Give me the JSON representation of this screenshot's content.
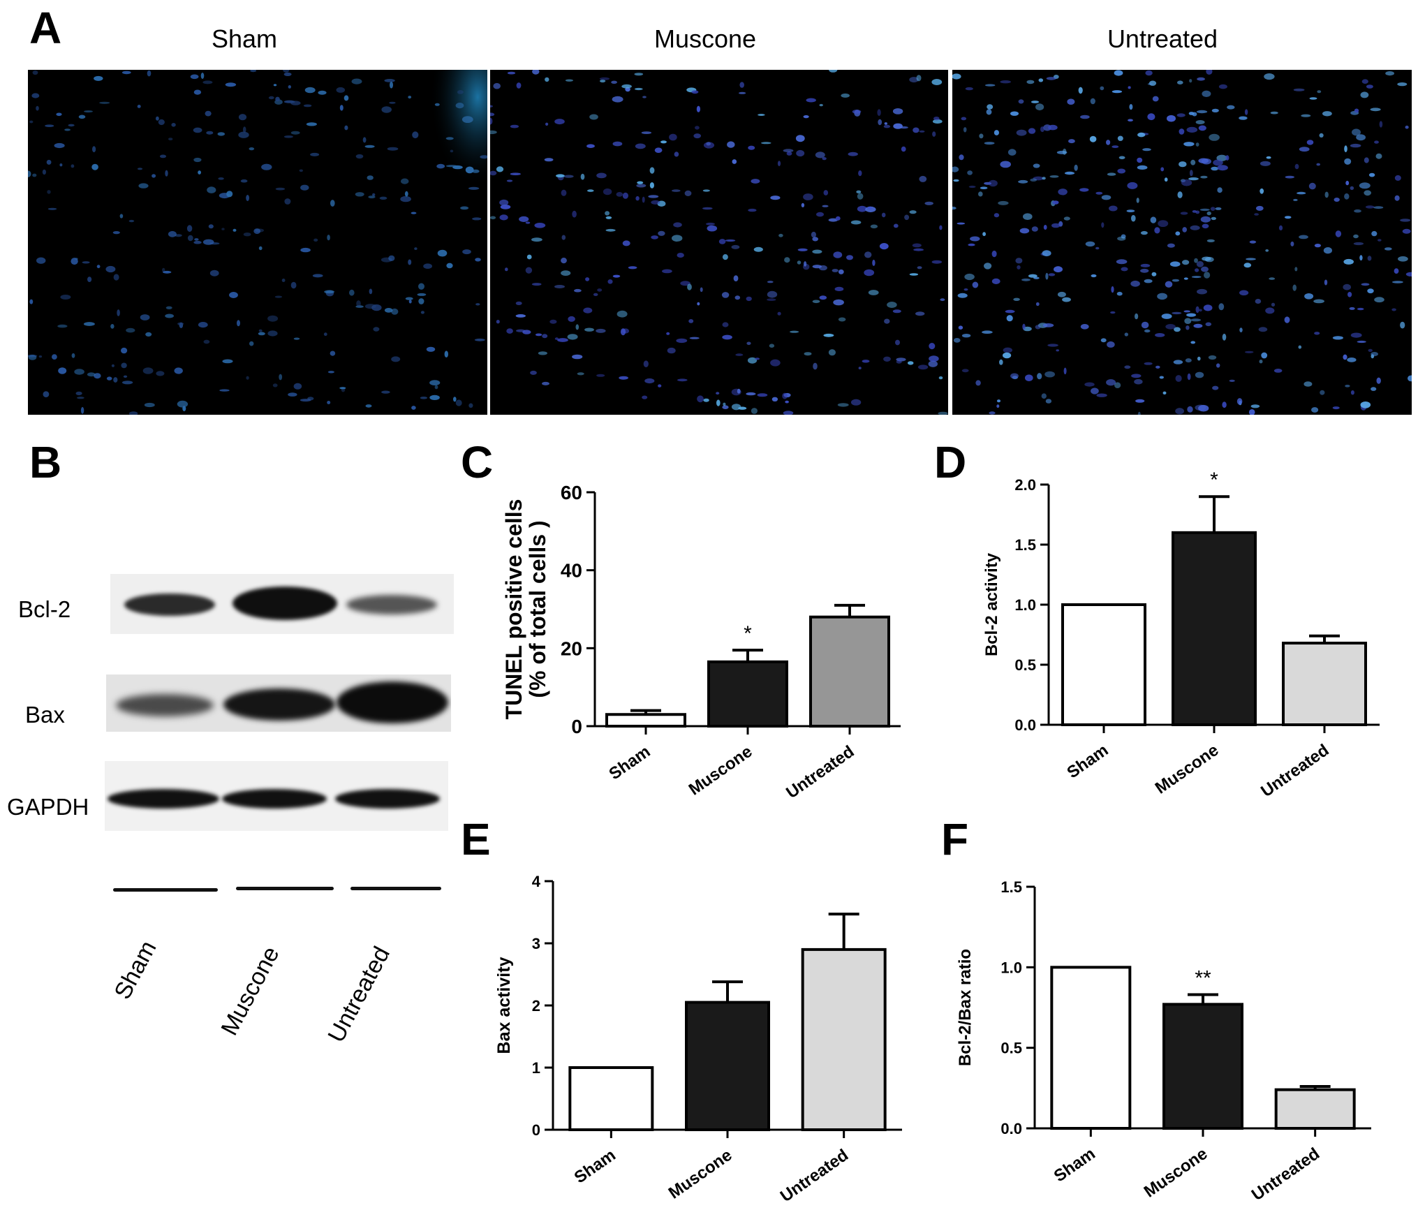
{
  "panel_letters": {
    "a": "A",
    "b": "B",
    "c": "C",
    "d": "D",
    "e": "E",
    "f": "F"
  },
  "panelA": {
    "titles": [
      "Sham",
      "Muscone",
      "Untreated"
    ]
  },
  "panelB": {
    "row_labels": [
      "Bcl-2",
      "Bax",
      "GAPDH"
    ],
    "lane_labels": [
      "Sham",
      "Muscone",
      "Untreated"
    ]
  },
  "colors": {
    "white_bar": "#ffffff",
    "black_bar": "#1a1a1a",
    "gray_bar": "#969696",
    "light_bar": "#d9d9d9"
  },
  "chart_data": [
    {
      "panel": "C",
      "type": "bar",
      "categories": [
        "Sham",
        "Muscone",
        "Untreated"
      ],
      "values": [
        3,
        16.5,
        28
      ],
      "errors": [
        1,
        3,
        3
      ],
      "annotations": [
        "",
        "*",
        ""
      ],
      "fills": [
        "#ffffff",
        "#1a1a1a",
        "#969696"
      ],
      "ylabel": [
        "TUNEL positive cells",
        "(% of total cells )"
      ],
      "ylim": [
        0,
        60
      ],
      "yticks": [
        0,
        20,
        40,
        60
      ]
    },
    {
      "panel": "D",
      "type": "bar",
      "categories": [
        "Sham",
        "Muscone",
        "Untreated"
      ],
      "values": [
        1.0,
        1.6,
        0.68
      ],
      "errors": [
        0,
        0.3,
        0.06
      ],
      "annotations": [
        "",
        "*",
        ""
      ],
      "fills": [
        "#ffffff",
        "#1a1a1a",
        "#d9d9d9"
      ],
      "ylabel": [
        "Bcl-2 activity"
      ],
      "ylim": [
        0,
        2.0
      ],
      "yticks": [
        "0.0",
        "0.5",
        "1.0",
        "1.5",
        "2.0"
      ]
    },
    {
      "panel": "E",
      "type": "bar",
      "categories": [
        "Sham",
        "Muscone",
        "Untreated"
      ],
      "values": [
        1.0,
        2.05,
        2.9
      ],
      "errors": [
        0,
        0.33,
        0.57
      ],
      "annotations": [
        "",
        "",
        ""
      ],
      "fills": [
        "#ffffff",
        "#1a1a1a",
        "#d9d9d9"
      ],
      "ylabel": [
        "Bax activity"
      ],
      "ylim": [
        0,
        4
      ],
      "yticks": [
        "0",
        "1",
        "2",
        "3",
        "4"
      ]
    },
    {
      "panel": "F",
      "type": "bar",
      "categories": [
        "Sham",
        "Muscone",
        "Untreated"
      ],
      "values": [
        1.0,
        0.77,
        0.24
      ],
      "errors": [
        0,
        0.06,
        0.02
      ],
      "annotations": [
        "",
        "**",
        ""
      ],
      "fills": [
        "#ffffff",
        "#1a1a1a",
        "#d9d9d9"
      ],
      "ylabel": [
        "Bcl-2/Bax ratio"
      ],
      "ylim": [
        0,
        1.5
      ],
      "yticks": [
        "0.0",
        "0.5",
        "1.0",
        "1.5"
      ]
    }
  ]
}
